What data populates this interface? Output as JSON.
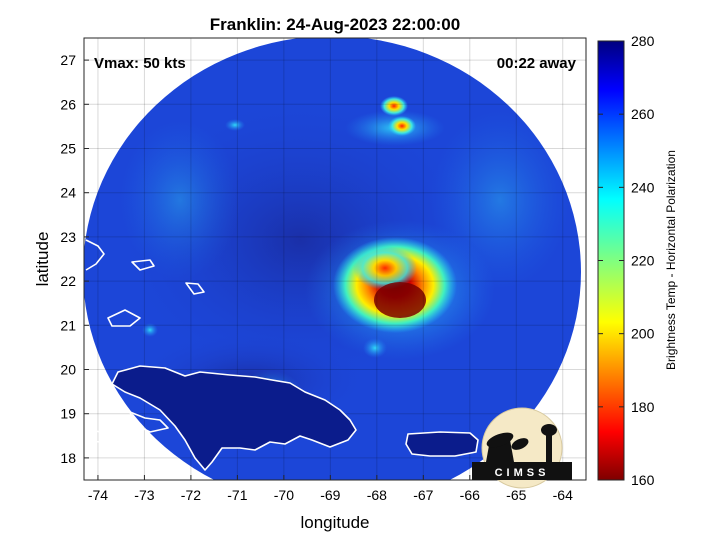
{
  "title": "Franklin: 24-Aug-2023 22:00:00",
  "vmax_label": "Vmax: 50 kts",
  "away_label": "00:22 away",
  "xlabel": "longitude",
  "ylabel": "latitude",
  "colorbar": {
    "label": "Brightness Temp - Horizontal Polarization",
    "min": 160,
    "max": 280,
    "ticks": [
      "280",
      "260",
      "240",
      "220",
      "200",
      "180",
      "160"
    ],
    "colormap": "jet"
  },
  "logo_text": "CIMSS",
  "map": {
    "xlim": [
      -74.3,
      -63.5
    ],
    "ylim": [
      17.5,
      27.5
    ],
    "xticks": [
      "-74",
      "-73",
      "-72",
      "-71",
      "-70",
      "-69",
      "-68",
      "-67",
      "-66",
      "-65",
      "-64"
    ],
    "yticks": [
      "27",
      "26",
      "25",
      "24",
      "23",
      "22",
      "21",
      "20",
      "19",
      "18"
    ],
    "grid": true,
    "swath_center": [
      -68.9,
      22.5
    ],
    "storm_core": [
      -67.8,
      21.6
    ],
    "background_color": "#1c46d8",
    "coastline_color": "#ffffff"
  }
}
